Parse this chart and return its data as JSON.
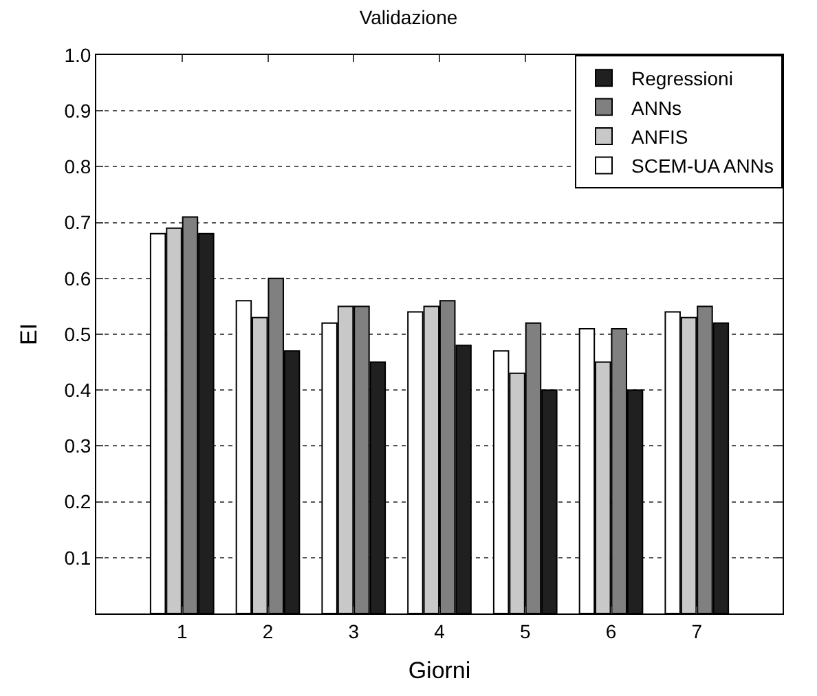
{
  "chart_data": {
    "type": "bar",
    "title": "Validazione",
    "xlabel": "Giorni",
    "ylabel": "EI",
    "categories": [
      "1",
      "2",
      "3",
      "4",
      "5",
      "6",
      "7"
    ],
    "series": [
      {
        "name": "SCEM-UA ANNs",
        "color": "#ffffff",
        "values": [
          0.68,
          0.56,
          0.52,
          0.54,
          0.47,
          0.51,
          0.54
        ]
      },
      {
        "name": "ANFIS",
        "color": "#c8c8c8",
        "values": [
          0.69,
          0.53,
          0.55,
          0.55,
          0.43,
          0.45,
          0.53
        ]
      },
      {
        "name": "ANNs",
        "color": "#808080",
        "values": [
          0.71,
          0.6,
          0.55,
          0.56,
          0.52,
          0.51,
          0.55
        ]
      },
      {
        "name": "Regressioni",
        "color": "#202020",
        "values": [
          0.68,
          0.47,
          0.45,
          0.48,
          0.4,
          0.4,
          0.52
        ]
      }
    ],
    "ylim": [
      0,
      1
    ],
    "yticks": [
      {
        "value": 0,
        "label": null
      },
      {
        "value": 0.1,
        "label": "0.1"
      },
      {
        "value": 0.2,
        "label": "0.2"
      },
      {
        "value": 0.3,
        "label": "0.3"
      },
      {
        "value": 0.4,
        "label": "0.4"
      },
      {
        "value": 0.5,
        "label": "0.5"
      },
      {
        "value": 0.6,
        "label": "0.6"
      },
      {
        "value": 0.7,
        "label": "0.7"
      },
      {
        "value": 0.8,
        "label": "0.8"
      },
      {
        "value": 0.9,
        "label": "0.9"
      },
      {
        "value": 1,
        "label": "1.0"
      }
    ],
    "grid": "y",
    "legend": "top right"
  }
}
